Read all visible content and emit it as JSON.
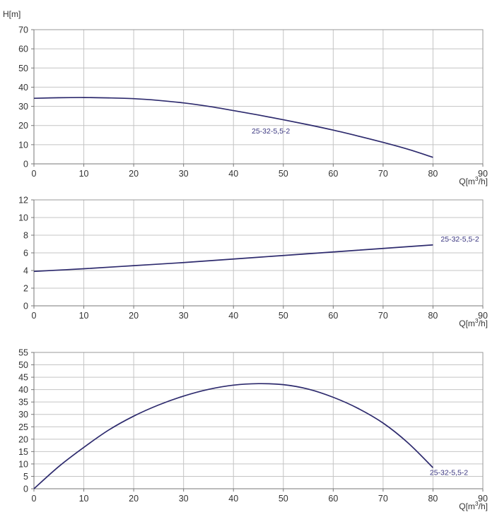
{
  "chart_data": [
    {
      "type": "line",
      "title": "",
      "ylabel": "H[m]",
      "xlabel": "Q[m³/h]",
      "xlabel_parts": {
        "prefix": "Q[m",
        "sup": "3",
        "suffix": "/h]"
      },
      "xlim": [
        0,
        90
      ],
      "ylim": [
        0,
        70
      ],
      "xticks": [
        "0",
        "10",
        "20",
        "30",
        "40",
        "50",
        "60",
        "70",
        "80",
        "90"
      ],
      "yticks": [
        "0",
        "10",
        "20",
        "30",
        "40",
        "50",
        "60",
        "70"
      ],
      "grid": true,
      "series": [
        {
          "name": "25-32-5,5-2",
          "x": [
            0,
            5,
            10,
            15,
            20,
            25,
            30,
            35,
            40,
            45,
            50,
            55,
            60,
            65,
            70,
            75,
            80
          ],
          "y": [
            34.2,
            34.5,
            34.6,
            34.4,
            34.0,
            33.1,
            31.8,
            30.0,
            27.8,
            25.5,
            23.0,
            20.4,
            17.6,
            14.5,
            11.2,
            7.6,
            3.4
          ]
        }
      ],
      "series_label": {
        "text": "25-32-5,5-2",
        "x": 47.5,
        "y": 15.8
      }
    },
    {
      "type": "line",
      "title": "",
      "ylabel": "",
      "xlabel": "Q[m³/h]",
      "xlabel_parts": {
        "prefix": "Q[m",
        "sup": "3",
        "suffix": "/h]"
      },
      "xlim": [
        0,
        90
      ],
      "ylim": [
        0,
        12
      ],
      "xticks": [
        "0",
        "10",
        "20",
        "30",
        "40",
        "50",
        "60",
        "70",
        "80",
        "90"
      ],
      "yticks": [
        "0",
        "2",
        "4",
        "6",
        "8",
        "10",
        "12"
      ],
      "grid": true,
      "series": [
        {
          "name": "25-32-5,5-2",
          "x": [
            0,
            10,
            20,
            30,
            40,
            50,
            60,
            70,
            80
          ],
          "y": [
            3.9,
            4.2,
            4.55,
            4.9,
            5.3,
            5.7,
            6.1,
            6.5,
            6.9
          ]
        }
      ],
      "series_label": {
        "text": "25-32-5,5-2",
        "x": 85.4,
        "y": 7.3
      }
    },
    {
      "type": "line",
      "title": "",
      "ylabel": "",
      "xlabel": "Q[m³/h]",
      "xlabel_parts": {
        "prefix": "Q[m",
        "sup": "3",
        "suffix": "/h]"
      },
      "xlim": [
        0,
        90
      ],
      "ylim": [
        0,
        55
      ],
      "xticks": [
        "0",
        "10",
        "20",
        "30",
        "40",
        "50",
        "60",
        "70",
        "80",
        "90"
      ],
      "yticks": [
        "0",
        "5",
        "10",
        "15",
        "20",
        "25",
        "30",
        "35",
        "40",
        "45",
        "50",
        "55"
      ],
      "grid": true,
      "series": [
        {
          "name": "25-32-5,5-2",
          "x": [
            0,
            5,
            10,
            15,
            20,
            25,
            30,
            35,
            40,
            45,
            50,
            55,
            60,
            65,
            70,
            75,
            80
          ],
          "y": [
            0,
            9.0,
            16.7,
            23.7,
            29.3,
            33.8,
            37.4,
            40.1,
            41.8,
            42.4,
            42.0,
            40.2,
            36.9,
            32.4,
            26.5,
            18.5,
            8.5
          ]
        }
      ],
      "series_label": {
        "text": "25-32-5,5-2",
        "x": 83.2,
        "y": 5.5
      }
    }
  ],
  "colors": {
    "curve": "#2e2b6e",
    "series_label": "#3a3680",
    "grid": "#c4c4c4"
  }
}
